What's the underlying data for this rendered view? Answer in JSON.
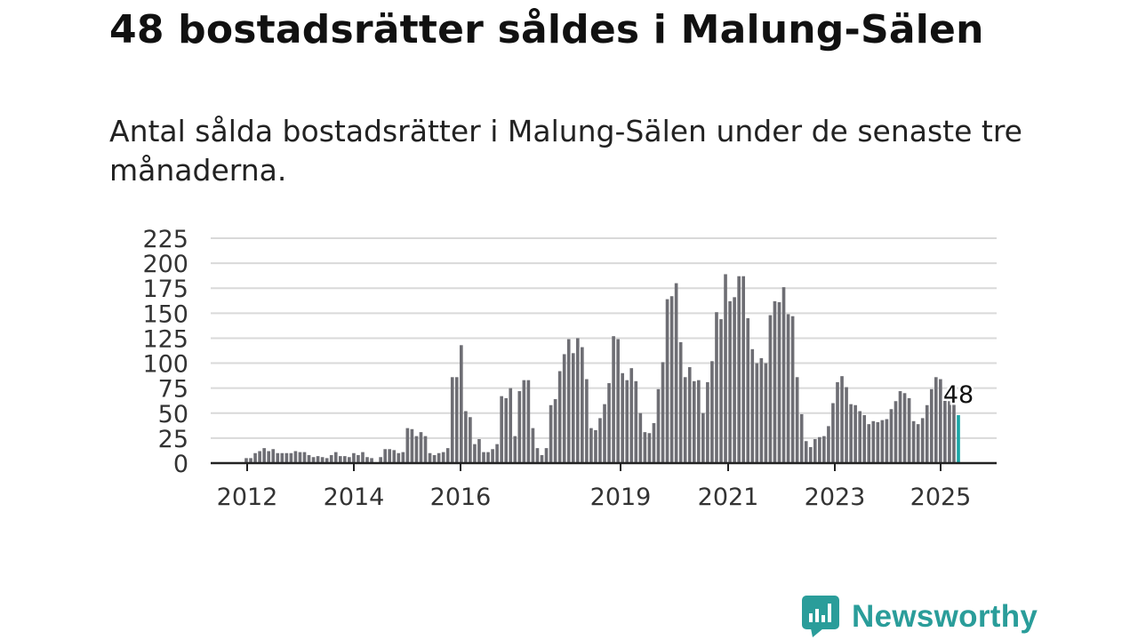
{
  "title": "48 bostadsrätter såldes i Malung-Sälen",
  "subtitle": "Antal sålda bostadsrätter i Malung-Sälen under de senaste tre månaderna.",
  "brand": {
    "name": "Newsworthy",
    "icon": "newsworthy-logo-icon",
    "color": "#2a9d9a"
  },
  "colors": {
    "bar": "#6e6e74",
    "highlight": "#1aa6a6",
    "grid": "#d9d9d9",
    "axis": "#222222"
  },
  "chart_data": {
    "type": "bar",
    "title": "",
    "xlabel": "",
    "ylabel": "",
    "ylim": [
      0,
      225
    ],
    "yticks": [
      "0",
      "25",
      "50",
      "75",
      "100",
      "125",
      "150",
      "175",
      "200",
      "225"
    ],
    "xtick_labels": [
      "2012",
      "2014",
      "2016",
      "2019",
      "2021",
      "2023",
      "2025"
    ],
    "grid": true,
    "highlight_label": "48",
    "values": [
      5,
      5,
      10,
      12,
      15,
      12,
      14,
      10,
      10,
      10,
      10,
      12,
      11,
      11,
      8,
      6,
      7,
      6,
      5,
      8,
      11,
      7,
      7,
      6,
      10,
      8,
      11,
      6,
      5,
      0,
      6,
      14,
      14,
      13,
      10,
      11,
      35,
      34,
      27,
      31,
      27,
      10,
      8,
      10,
      11,
      15,
      86,
      86,
      118,
      52,
      46,
      19,
      24,
      11,
      11,
      14,
      19,
      67,
      65,
      75,
      27,
      72,
      83,
      83,
      35,
      15,
      8,
      15,
      58,
      64,
      92,
      109,
      124,
      110,
      125,
      116,
      84,
      35,
      33,
      45,
      59,
      80,
      127,
      124,
      90,
      83,
      95,
      82,
      50,
      31,
      30,
      40,
      74,
      101,
      164,
      167,
      180,
      121,
      86,
      96,
      82,
      83,
      50,
      81,
      102,
      151,
      144,
      189,
      162,
      166,
      187,
      187,
      145,
      114,
      100,
      105,
      100,
      148,
      162,
      161,
      176,
      149,
      147,
      86,
      49,
      22,
      16,
      24,
      26,
      27,
      37,
      60,
      81,
      87,
      76,
      59,
      58,
      52,
      48,
      39,
      42,
      41,
      43,
      44,
      54,
      62,
      72,
      70,
      65,
      42,
      39,
      45,
      58,
      74,
      86,
      84,
      64,
      62,
      60,
      48
    ]
  }
}
